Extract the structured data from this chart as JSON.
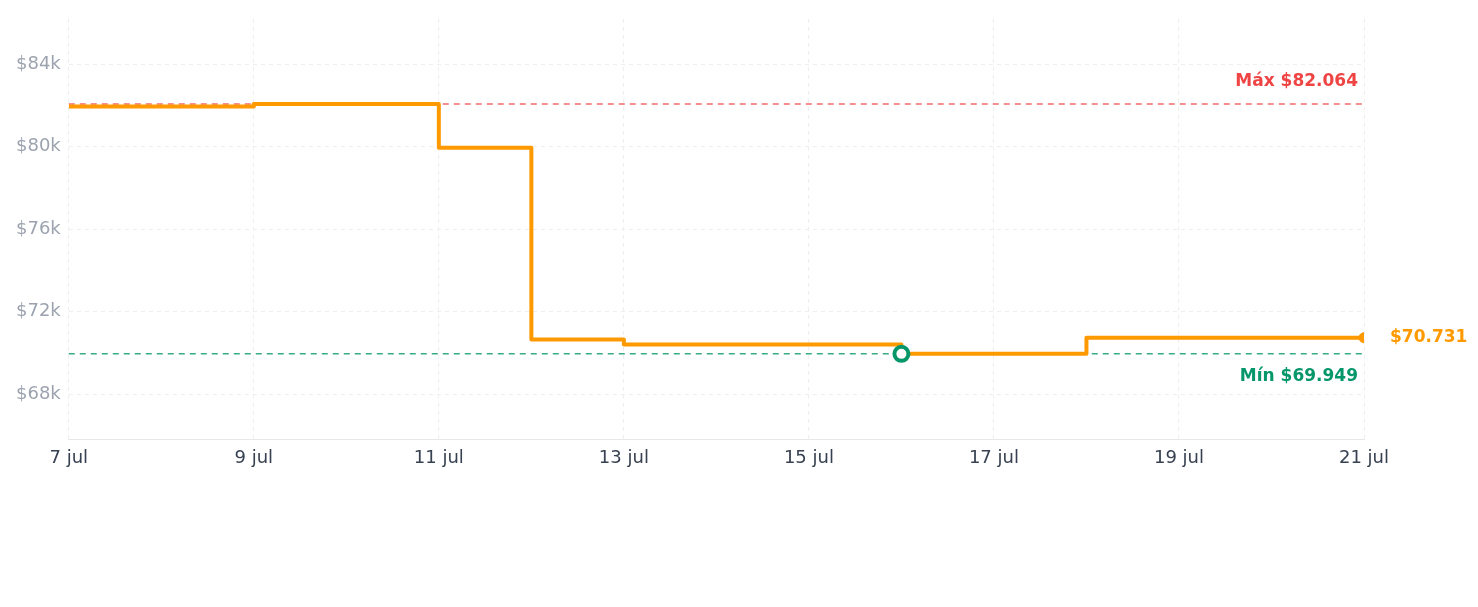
{
  "chart_data": {
    "type": "step",
    "x": [
      "--07-07",
      "--07-09",
      "--07-11",
      "--07-12",
      "--07-13",
      "--07-16",
      "--07-18",
      "--07-21"
    ],
    "series": [
      {
        "color": "#ff9900",
        "values": [
          81.95,
          82.064,
          79.95,
          70.65,
          70.4,
          69.949,
          70.731,
          70.731
        ]
      }
    ],
    "xlim": [
      "--07-07",
      "--07-21"
    ],
    "xticks": [
      {
        "value": "--07-07",
        "label": "7 jul"
      },
      {
        "value": "--07-09",
        "label": "9 jul"
      },
      {
        "value": "--07-11",
        "label": "11 jul"
      },
      {
        "value": "--07-13",
        "label": "13 jul"
      },
      {
        "value": "--07-15",
        "label": "15 jul"
      },
      {
        "value": "--07-17",
        "label": "17 jul"
      },
      {
        "value": "--07-19",
        "label": "19 jul"
      },
      {
        "value": "--07-21",
        "label": "21 jul"
      }
    ],
    "ylim": [
      65.8,
      86.2
    ],
    "yticks": [
      {
        "value": 68,
        "label": "$68k"
      },
      {
        "value": 72,
        "label": "$72k"
      },
      {
        "value": 76,
        "label": "$76k"
      },
      {
        "value": 80,
        "label": "$80k"
      },
      {
        "value": 84,
        "label": "$84k"
      }
    ],
    "grid": true,
    "legend": false,
    "ref_lines": [
      {
        "axis": "y",
        "value": 82.064,
        "label": "Máx $82.064",
        "color": "#ef4444",
        "line_style": "dashed"
      },
      {
        "axis": "y",
        "value": 69.949,
        "label": "Mín $69.949",
        "color": "#059669",
        "line_style": "dashed"
      }
    ],
    "annotations": [
      {
        "text": "$70.731",
        "x": "--07-21",
        "y": 70.731
      }
    ]
  }
}
